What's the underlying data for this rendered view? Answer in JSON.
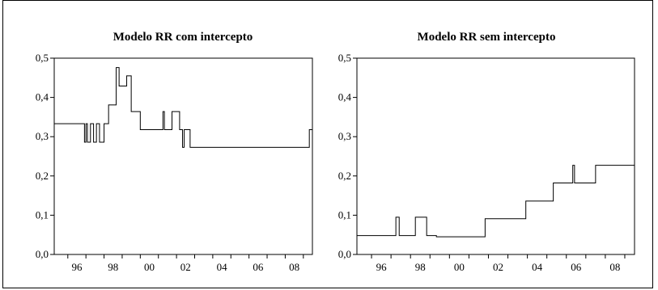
{
  "chart_data": [
    {
      "type": "line",
      "title": "Modelo RR com intercepto",
      "xlabel": "",
      "ylabel": "",
      "xlim": [
        1995.25,
        2009.5
      ],
      "ylim": [
        0,
        0.5
      ],
      "x_ticks": [
        "96",
        "98",
        "00",
        "02",
        "04",
        "06",
        "08"
      ],
      "y_ticks": [
        "0,0",
        "0,1",
        "0,2",
        "0,3",
        "0,4",
        "0,5"
      ],
      "series": [
        {
          "x": [
            1995.25,
            1996.92,
            1996.92,
            1997.0,
            1997.0,
            1997.08,
            1997.08,
            1997.25,
            1997.25,
            1997.42,
            1997.42,
            1997.58,
            1997.58,
            1997.75,
            1997.75,
            1997.92,
            1997.92,
            1998.0,
            1998.0,
            1998.25,
            1998.25,
            1998.33,
            1998.33,
            1998.67,
            1998.67,
            1998.83,
            1998.83,
            1999.0,
            1999.0,
            1999.25,
            1999.25,
            1999.5,
            1999.5,
            1999.75,
            1999.75,
            2000.0,
            2000.0,
            2000.5,
            2000.5,
            2001.25,
            2001.25,
            2001.33,
            2001.33,
            2001.75,
            2001.75,
            2002.17,
            2002.17,
            2002.33,
            2002.33,
            2002.42,
            2002.42,
            2002.58,
            2002.58,
            2002.75,
            2002.75,
            2009.33,
            2009.33,
            2009.5
          ],
          "y": [
            0.333,
            0.333,
            0.286,
            0.286,
            0.333,
            0.333,
            0.286,
            0.286,
            0.333,
            0.333,
            0.286,
            0.286,
            0.333,
            0.333,
            0.286,
            0.286,
            0.286,
            0.286,
            0.333,
            0.333,
            0.381,
            0.381,
            0.381,
            0.381,
            0.476,
            0.476,
            0.429,
            0.429,
            0.429,
            0.429,
            0.455,
            0.455,
            0.364,
            0.364,
            0.364,
            0.364,
            0.318,
            0.318,
            0.318,
            0.318,
            0.364,
            0.364,
            0.318,
            0.318,
            0.364,
            0.364,
            0.318,
            0.318,
            0.273,
            0.273,
            0.318,
            0.318,
            0.318,
            0.318,
            0.273,
            0.273,
            0.318,
            0.318
          ]
        }
      ]
    },
    {
      "type": "line",
      "title": "Modelo RR sem intercepto",
      "xlabel": "",
      "ylabel": "",
      "xlim": [
        1995.25,
        2009.5
      ],
      "ylim": [
        0,
        0.5
      ],
      "x_ticks": [
        "96",
        "98",
        "00",
        "02",
        "04",
        "06",
        "08"
      ],
      "y_ticks": [
        "0,0",
        "0,1",
        "0,2",
        "0,3",
        "0,4",
        "0,5"
      ],
      "series": [
        {
          "x": [
            1995.25,
            1997.25,
            1997.25,
            1997.42,
            1997.42,
            1998.25,
            1998.25,
            1998.83,
            1998.83,
            1999.33,
            1999.33,
            2001.83,
            2001.83,
            2003.92,
            2003.92,
            2005.33,
            2005.33,
            2006.33,
            2006.33,
            2006.42,
            2006.42,
            2007.5,
            2007.5,
            2009.5
          ],
          "y": [
            0.048,
            0.048,
            0.095,
            0.095,
            0.048,
            0.048,
            0.095,
            0.095,
            0.048,
            0.048,
            0.045,
            0.045,
            0.091,
            0.091,
            0.136,
            0.136,
            0.182,
            0.182,
            0.227,
            0.227,
            0.182,
            0.182,
            0.227,
            0.227
          ]
        }
      ]
    }
  ]
}
